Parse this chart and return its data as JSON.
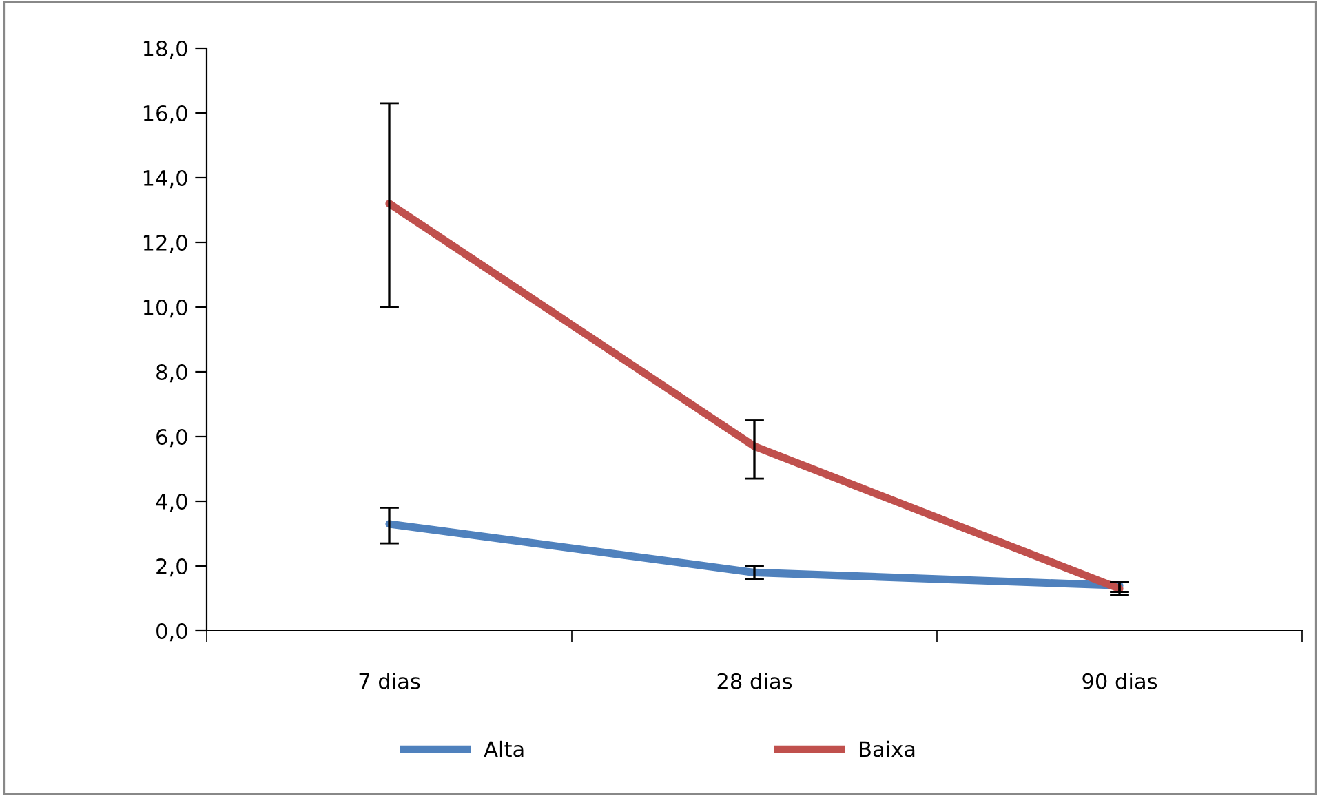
{
  "chart_data": {
    "type": "line",
    "categories": [
      "7 dias",
      "28 dias",
      "90 dias"
    ],
    "series": [
      {
        "name": "Alta",
        "color": "#4f81bd",
        "values": [
          3.3,
          1.8,
          1.4
        ],
        "errors": [
          [
            2.7,
            3.8
          ],
          [
            1.6,
            2.0
          ],
          [
            1.2,
            1.5
          ]
        ]
      },
      {
        "name": "Baixa",
        "color": "#c0504d",
        "values": [
          13.2,
          5.7,
          1.3
        ],
        "errors": [
          [
            10.0,
            16.3
          ],
          [
            4.7,
            6.5
          ],
          [
            1.1,
            1.5
          ]
        ]
      }
    ],
    "ylim": [
      0,
      18
    ],
    "yticks": [
      {
        "value": 0,
        "label": "0,0"
      },
      {
        "value": 2,
        "label": "2,0"
      },
      {
        "value": 4,
        "label": "4,0"
      },
      {
        "value": 6,
        "label": "6,0"
      },
      {
        "value": 8,
        "label": "8,0"
      },
      {
        "value": 10,
        "label": "10,0"
      },
      {
        "value": 12,
        "label": "12,0"
      },
      {
        "value": 14,
        "label": "14,0"
      },
      {
        "value": 16,
        "label": "16,0"
      },
      {
        "value": 18,
        "label": "18,0"
      }
    ],
    "grid": false,
    "legend": "bottom",
    "marker": "none",
    "line_style": "solid"
  }
}
